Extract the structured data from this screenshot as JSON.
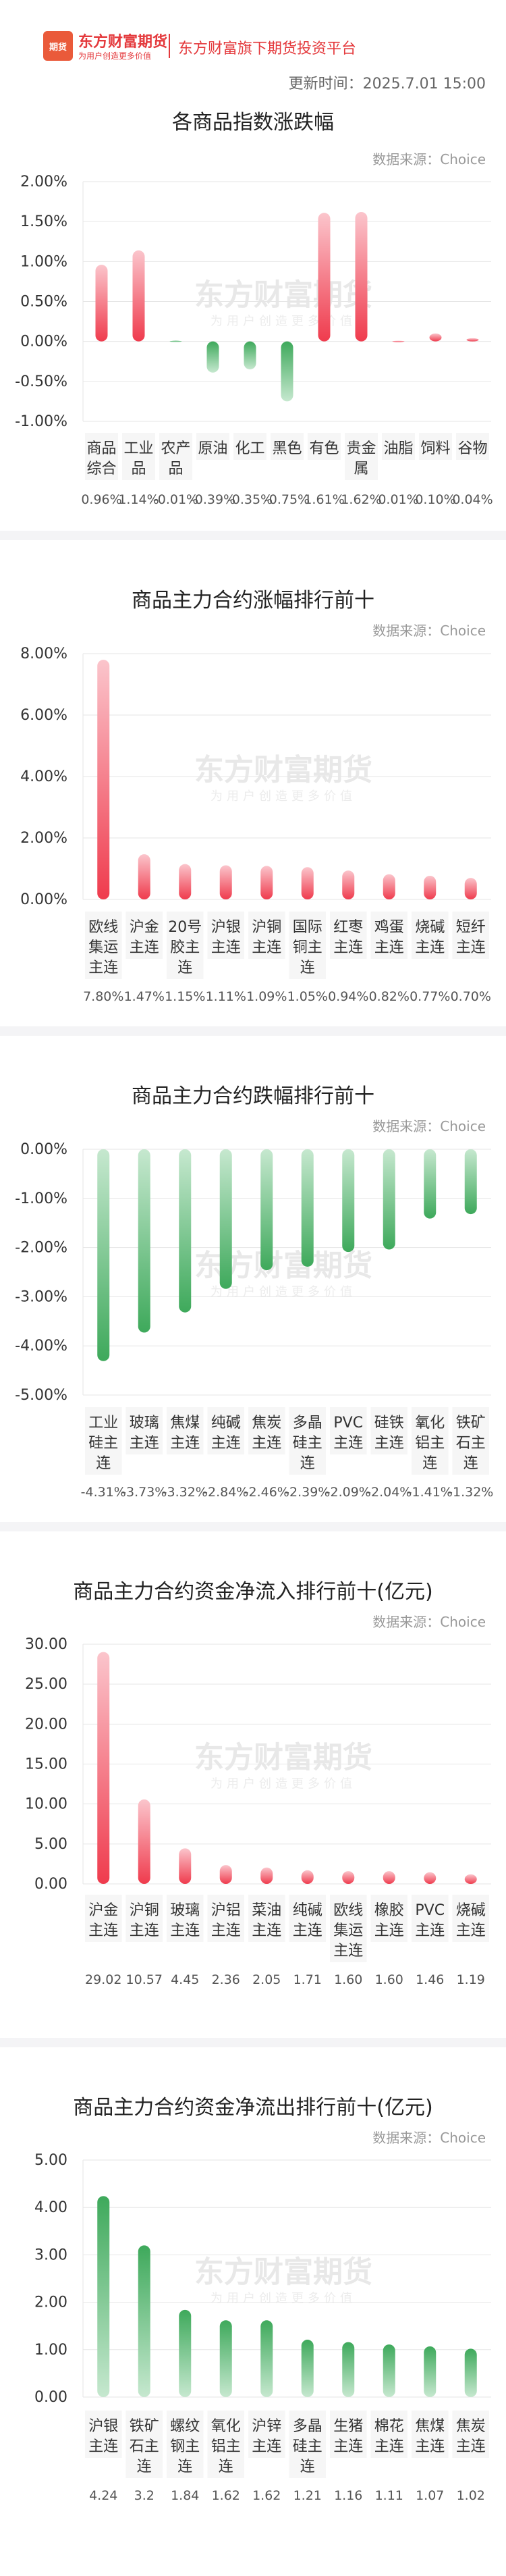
{
  "header": {
    "logo_badge": "期货",
    "logo_name": "东方财富期货",
    "logo_slogan": "为用户创造更多价值",
    "platform": "东方财富旗下期货投资平台",
    "update_time": "更新时间：2025.7.01 15:00"
  },
  "watermark": {
    "main": "东方财富期货",
    "sub": "为用户创造更多价值"
  },
  "source_label": "数据来源：Choice",
  "colors": {
    "up_dark": "#ef3b4d",
    "up_light": "#fbc5cc",
    "down_dark": "#3ea95b",
    "down_light": "#c6e8cf",
    "grid": "#e6e6e6",
    "axis_text": "#333333",
    "value_text": "#555555"
  },
  "chart_data": [
    {
      "type": "bar",
      "title": "各商品指数涨跌幅",
      "categories": [
        [
          "商品",
          "综合"
        ],
        [
          "工业",
          "品"
        ],
        [
          "农产",
          "品"
        ],
        [
          "原油"
        ],
        [
          "化工"
        ],
        [
          "黑色"
        ],
        [
          "有色"
        ],
        [
          "贵金",
          "属"
        ],
        [
          "油脂"
        ],
        [
          "饲料"
        ],
        [
          "谷物"
        ]
      ],
      "values": [
        0.96,
        1.14,
        -0.01,
        -0.39,
        -0.35,
        -0.75,
        1.61,
        1.62,
        0.01,
        0.1,
        0.04
      ],
      "value_labels": [
        "0.96%",
        "1.14%",
        "-0.01%",
        "-0.39%",
        "-0.35%",
        "-0.75%",
        "1.61%",
        "1.62%",
        "0.01%",
        "0.10%",
        "0.04%"
      ],
      "yticks": [
        "2.00%",
        "1.50%",
        "1.00%",
        "0.50%",
        "0.00%",
        "-0.50%",
        "-1.00%"
      ],
      "ylim": [
        -1.0,
        2.0
      ]
    },
    {
      "type": "bar",
      "title": "商品主力合约涨幅排行前十",
      "categories": [
        [
          "欧线",
          "集运",
          "主连"
        ],
        [
          "沪金",
          "主连"
        ],
        [
          "20号",
          "胶主",
          "连"
        ],
        [
          "沪银",
          "主连"
        ],
        [
          "沪铜",
          "主连"
        ],
        [
          "国际",
          "铜主",
          "连"
        ],
        [
          "红枣",
          "主连"
        ],
        [
          "鸡蛋",
          "主连"
        ],
        [
          "烧碱",
          "主连"
        ],
        [
          "短纤",
          "主连"
        ]
      ],
      "values": [
        7.8,
        1.47,
        1.15,
        1.11,
        1.09,
        1.05,
        0.94,
        0.82,
        0.77,
        0.7
      ],
      "value_labels": [
        "7.80%",
        "1.47%",
        "1.15%",
        "1.11%",
        "1.09%",
        "1.05%",
        "0.94%",
        "0.82%",
        "0.77%",
        "0.70%"
      ],
      "yticks": [
        "8.00%",
        "6.00%",
        "4.00%",
        "2.00%",
        "0.00%"
      ],
      "ylim": [
        0,
        8
      ]
    },
    {
      "type": "bar",
      "title": "商品主力合约跌幅排行前十",
      "categories": [
        [
          "工业",
          "硅主",
          "连"
        ],
        [
          "玻璃",
          "主连"
        ],
        [
          "焦煤",
          "主连"
        ],
        [
          "纯碱",
          "主连"
        ],
        [
          "焦炭",
          "主连"
        ],
        [
          "多晶",
          "硅主",
          "连"
        ],
        [
          "PVC",
          "主连"
        ],
        [
          "硅铁",
          "主连"
        ],
        [
          "氧化",
          "铝主",
          "连"
        ],
        [
          "铁矿",
          "石主",
          "连"
        ]
      ],
      "values": [
        -4.31,
        -3.73,
        -3.32,
        -2.84,
        -2.46,
        -2.39,
        -2.09,
        -2.04,
        -1.41,
        -1.32
      ],
      "value_labels": [
        "-4.31%",
        "-3.73%",
        "-3.32%",
        "-2.84%",
        "-2.46%",
        "-2.39%",
        "-2.09%",
        "-2.04%",
        "-1.41%",
        "-1.32%"
      ],
      "yticks": [
        "0.00%",
        "-1.00%",
        "-2.00%",
        "-3.00%",
        "-4.00%",
        "-5.00%"
      ],
      "ylim": [
        -5,
        0
      ]
    },
    {
      "type": "bar",
      "title": "商品主力合约资金净流入排行前十(亿元)",
      "categories": [
        [
          "沪金",
          "主连"
        ],
        [
          "沪铜",
          "主连"
        ],
        [
          "玻璃",
          "主连"
        ],
        [
          "沪铝",
          "主连"
        ],
        [
          "菜油",
          "主连"
        ],
        [
          "纯碱",
          "主连"
        ],
        [
          "欧线",
          "集运",
          "主连"
        ],
        [
          "橡胶",
          "主连"
        ],
        [
          "PVC",
          "主连"
        ],
        [
          "烧碱",
          "主连"
        ]
      ],
      "values": [
        29.02,
        10.57,
        4.45,
        2.36,
        2.05,
        1.71,
        1.6,
        1.6,
        1.46,
        1.19
      ],
      "value_labels": [
        "29.02",
        "10.57",
        "4.45",
        "2.36",
        "2.05",
        "1.71",
        "1.60",
        "1.60",
        "1.46",
        "1.19"
      ],
      "yticks": [
        "30.00",
        "25.00",
        "20.00",
        "15.00",
        "10.00",
        "5.00",
        "0.00"
      ],
      "ylim": [
        0,
        30
      ]
    },
    {
      "type": "bar",
      "title": "商品主力合约资金净流出排行前十(亿元)",
      "categories": [
        [
          "沪银",
          "主连"
        ],
        [
          "铁矿",
          "石主",
          "连"
        ],
        [
          "螺纹",
          "钢主",
          "连"
        ],
        [
          "氧化",
          "铝主",
          "连"
        ],
        [
          "沪锌",
          "主连"
        ],
        [
          "多晶",
          "硅主",
          "连"
        ],
        [
          "生猪",
          "主连"
        ],
        [
          "棉花",
          "主连"
        ],
        [
          "焦煤",
          "主连"
        ],
        [
          "焦炭",
          "主连"
        ]
      ],
      "values": [
        4.24,
        3.2,
        1.84,
        1.62,
        1.62,
        1.21,
        1.16,
        1.11,
        1.07,
        1.02
      ],
      "value_labels": [
        "4.24",
        "3.2",
        "1.84",
        "1.62",
        "1.62",
        "1.21",
        "1.16",
        "1.11",
        "1.07",
        "1.02"
      ],
      "yticks": [
        "5.00",
        "4.00",
        "3.00",
        "2.00",
        "1.00",
        "0.00"
      ],
      "ylim": [
        0,
        5
      ]
    }
  ]
}
